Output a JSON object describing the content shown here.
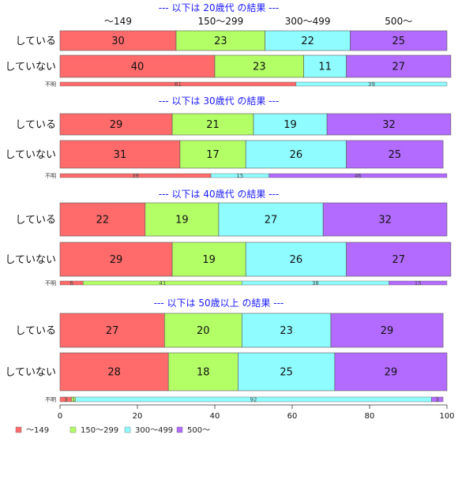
{
  "chart_data": {
    "type": "bar",
    "orientation": "horizontal-stacked-percent",
    "categories": [
      "〜149",
      "150〜299",
      "300〜499",
      "500〜"
    ],
    "colors": [
      "#ff6b6b",
      "#b3ff66",
      "#8ffcff",
      "#b36bff"
    ],
    "xlim": [
      0,
      100
    ],
    "xticks": [
      "0",
      "20",
      "40",
      "60",
      "80",
      "100"
    ],
    "legend_position": "bottom-left",
    "panels": [
      {
        "title": "--- 以下は 20歳代 の結果 ---",
        "show_category_header": true,
        "rows": [
          {
            "label": "している",
            "values": [
              30,
              23,
              22,
              25
            ]
          },
          {
            "label": "していない",
            "values": [
              40,
              23,
              11,
              27
            ]
          },
          {
            "label": "不明",
            "values": [
              61,
              0,
              39,
              0
            ],
            "labels": [
              "61",
              "",
              "39",
              ""
            ],
            "small": true
          }
        ]
      },
      {
        "title": "--- 以下は 30歳代 の結果 ---",
        "rows": [
          {
            "label": "している",
            "values": [
              29,
              21,
              19,
              32
            ]
          },
          {
            "label": "していない",
            "values": [
              31,
              17,
              26,
              25
            ]
          },
          {
            "label": "不明",
            "values": [
              39,
              0,
              15,
              46
            ],
            "labels": [
              "39",
              "",
              "15",
              "46"
            ],
            "small": true
          }
        ]
      },
      {
        "title": "--- 以下は 40歳代 の結果 ---",
        "rows": [
          {
            "label": "している",
            "values": [
              22,
              19,
              27,
              32
            ]
          },
          {
            "label": "していない",
            "values": [
              29,
              19,
              26,
              27
            ]
          },
          {
            "label": "不明",
            "values": [
              6,
              41,
              38,
              15
            ],
            "labels": [
              "6",
              "41",
              "38",
              "15"
            ],
            "small": true
          }
        ]
      },
      {
        "title": "--- 以下は 50歳以上 の結果 ---",
        "rows": [
          {
            "label": "している",
            "values": [
              27,
              20,
              23,
              29
            ]
          },
          {
            "label": "していない",
            "values": [
              28,
              18,
              25,
              29
            ]
          },
          {
            "label": "不明",
            "values": [
              3,
              1,
              92,
              3
            ],
            "labels": [
              "3",
              "1",
              "92",
              "3"
            ],
            "small": true
          }
        ]
      }
    ]
  }
}
